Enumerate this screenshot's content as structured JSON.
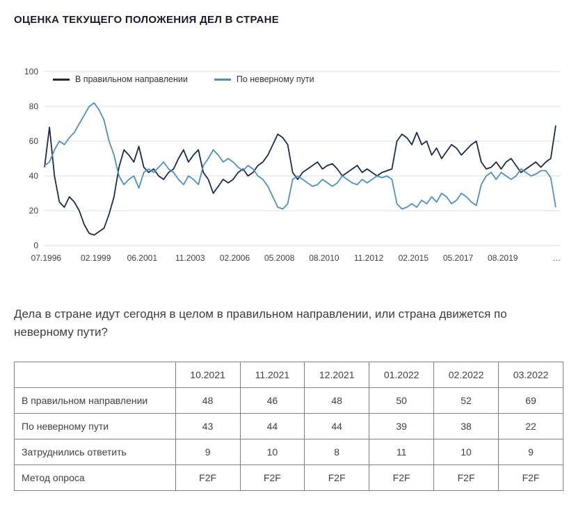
{
  "page": {
    "title": "ОЦЕНКА ТЕКУЩЕГО ПОЛОЖЕНИЯ ДЕЛ В СТРАНЕ",
    "question": "Дела в стране идут сегодня в целом в правильном направлении, или страна движется по неверному пути?"
  },
  "chart_data": {
    "type": "line",
    "title": "",
    "xlabel": "",
    "ylabel": "",
    "ylim": [
      0,
      100
    ],
    "y_ticks": [
      0,
      20,
      40,
      60,
      80,
      100
    ],
    "grid": "horizontal",
    "legend_position": "top-left",
    "x_tick_labels": [
      {
        "x": 1996.583,
        "label": "07.1996"
      },
      {
        "x": 1999.083,
        "label": "02.1999"
      },
      {
        "x": 2001.417,
        "label": "06.2001"
      },
      {
        "x": 2003.833,
        "label": "11.2003"
      },
      {
        "x": 2006.083,
        "label": "02.2006"
      },
      {
        "x": 2008.333,
        "label": "05.2008"
      },
      {
        "x": 2010.583,
        "label": "08.2010"
      },
      {
        "x": 2012.833,
        "label": "11.2012"
      },
      {
        "x": 2015.083,
        "label": "02.2015"
      },
      {
        "x": 2017.333,
        "label": "05.2017"
      },
      {
        "x": 2019.583,
        "label": "08.2019"
      },
      {
        "x": 2022.3,
        "label": "…"
      }
    ],
    "x": [
      1996.5,
      1996.75,
      1997,
      1997.25,
      1997.5,
      1997.75,
      1998,
      1998.25,
      1998.5,
      1998.75,
      1999,
      1999.25,
      1999.5,
      1999.75,
      2000,
      2000.25,
      2000.5,
      2000.75,
      2001,
      2001.25,
      2001.5,
      2001.75,
      2002,
      2002.25,
      2002.5,
      2002.75,
      2003,
      2003.25,
      2003.5,
      2003.75,
      2004,
      2004.25,
      2004.5,
      2004.75,
      2005,
      2005.25,
      2005.5,
      2005.75,
      2006,
      2006.25,
      2006.5,
      2006.75,
      2007,
      2007.25,
      2007.5,
      2007.75,
      2008,
      2008.25,
      2008.5,
      2008.75,
      2009,
      2009.25,
      2009.5,
      2009.75,
      2010,
      2010.25,
      2010.5,
      2010.75,
      2011,
      2011.25,
      2011.5,
      2011.75,
      2012,
      2012.25,
      2012.5,
      2012.75,
      2013,
      2013.25,
      2013.5,
      2013.75,
      2014,
      2014.25,
      2014.5,
      2014.75,
      2015,
      2015.25,
      2015.5,
      2015.75,
      2016,
      2016.25,
      2016.5,
      2016.75,
      2017,
      2017.25,
      2017.5,
      2017.75,
      2018,
      2018.25,
      2018.5,
      2018.75,
      2019,
      2019.25,
      2019.5,
      2019.75,
      2020,
      2020.25,
      2020.5,
      2020.75,
      2021,
      2021.25,
      2021.5,
      2021.75,
      2022,
      2022.25
    ],
    "series": [
      {
        "name": "В правильном направлении",
        "color": "#1b2a4a",
        "values": [
          45,
          68,
          40,
          25,
          22,
          28,
          25,
          20,
          12,
          7,
          6,
          8,
          10,
          18,
          28,
          45,
          55,
          52,
          48,
          57,
          45,
          42,
          44,
          40,
          38,
          42,
          44,
          50,
          55,
          48,
          52,
          55,
          42,
          38,
          30,
          34,
          38,
          36,
          38,
          42,
          44,
          40,
          42,
          46,
          48,
          52,
          58,
          64,
          62,
          58,
          42,
          38,
          42,
          44,
          46,
          48,
          44,
          46,
          47,
          44,
          40,
          42,
          44,
          46,
          42,
          44,
          42,
          40,
          42,
          43,
          44,
          60,
          64,
          62,
          58,
          65,
          58,
          60,
          52,
          56,
          50,
          54,
          58,
          56,
          52,
          55,
          58,
          60,
          48,
          44,
          45,
          48,
          44,
          48,
          50,
          46,
          42,
          44,
          46,
          48,
          45,
          48,
          50,
          69
        ]
      },
      {
        "name": "По неверному пути",
        "color": "#4a90c9",
        "values": [
          46,
          48,
          55,
          60,
          58,
          62,
          65,
          70,
          75,
          80,
          82,
          78,
          72,
          60,
          52,
          40,
          35,
          38,
          40,
          33,
          42,
          44,
          42,
          45,
          48,
          44,
          42,
          38,
          35,
          40,
          38,
          35,
          46,
          50,
          55,
          52,
          48,
          50,
          48,
          45,
          43,
          46,
          44,
          40,
          38,
          34,
          28,
          22,
          21,
          24,
          38,
          40,
          38,
          36,
          34,
          35,
          38,
          36,
          34,
          36,
          40,
          38,
          36,
          35,
          38,
          36,
          38,
          40,
          39,
          40,
          38,
          24,
          21,
          22,
          24,
          22,
          26,
          24,
          28,
          25,
          30,
          28,
          24,
          26,
          30,
          28,
          25,
          23,
          35,
          40,
          42,
          38,
          42,
          40,
          38,
          40,
          44,
          42,
          40,
          41,
          43,
          43,
          39,
          22
        ]
      }
    ]
  },
  "table": {
    "columns": [
      "",
      "10.2021",
      "11.2021",
      "12.2021",
      "01.2022",
      "02.2022",
      "03.2022"
    ],
    "rows": [
      {
        "label": "В правильном направлении",
        "values": [
          "48",
          "46",
          "48",
          "50",
          "52",
          "69"
        ]
      },
      {
        "label": "По неверному пути",
        "values": [
          "43",
          "44",
          "44",
          "39",
          "38",
          "22"
        ]
      },
      {
        "label": "Затруднились ответить",
        "values": [
          "9",
          "10",
          "8",
          "11",
          "10",
          "9"
        ]
      },
      {
        "label": "Метод опроса",
        "values": [
          "F2F",
          "F2F",
          "F2F",
          "F2F",
          "F2F",
          "F2F"
        ]
      }
    ]
  }
}
